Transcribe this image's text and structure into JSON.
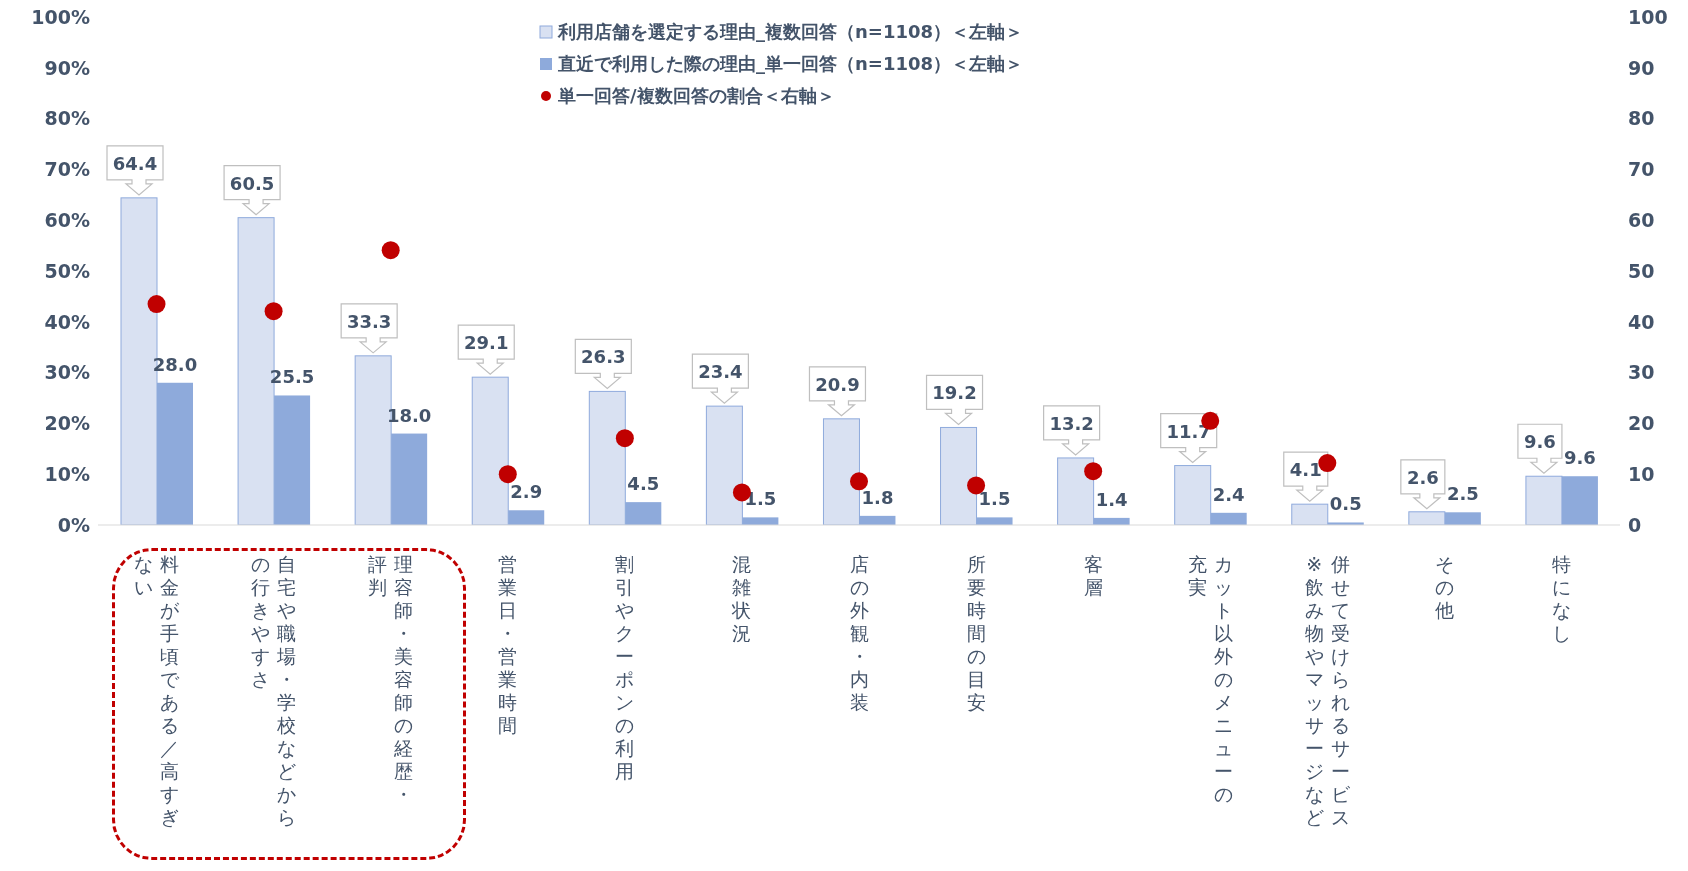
{
  "chart_data": {
    "type": "bar",
    "categories": [
      "料金が手頃である／高すぎない",
      "自宅や職場・学校などからの行きやすさ",
      "理容師・美容師の経歴・評判",
      "営業日・営業時間",
      "割引やクーポンの利用",
      "混雑状況",
      "店の外観・内装",
      "所要時間の目安",
      "客層",
      "カット以外のメニューの充実",
      "併せて受けられるサービス※飲み物やマッサージなど",
      "その他",
      "特になし"
    ],
    "series": [
      {
        "name": "利用店舗を選定する理由_複数回答（n=1108）＜左軸＞",
        "color": "#d9e1f2",
        "values": [
          64.4,
          60.5,
          33.3,
          29.1,
          26.3,
          23.4,
          20.9,
          19.2,
          13.2,
          11.7,
          4.1,
          2.6,
          9.6
        ],
        "value_labels": [
          "64.4",
          "60.5",
          "33.3",
          "29.1",
          "26.3",
          "23.4",
          "20.9",
          "19.2",
          "13.2",
          "11.7",
          "4.1",
          "2.6",
          "9.6"
        ]
      },
      {
        "name": "直近で利用した際の理由_単一回答（n=1108）＜左軸＞",
        "color": "#8eaadb",
        "values": [
          28.0,
          25.5,
          18.0,
          2.9,
          4.5,
          1.5,
          1.8,
          1.5,
          1.4,
          2.4,
          0.5,
          2.5,
          9.6
        ],
        "value_labels": [
          "28.0",
          "25.5",
          "18.0",
          "2.9",
          "4.5",
          "1.5",
          "1.8",
          "1.5",
          "1.4",
          "2.4",
          "0.5",
          "2.5",
          "9.6"
        ]
      },
      {
        "name": "単一回答/複数回答の割合＜右軸＞",
        "type": "scatter",
        "axis": "y2",
        "color": "#c00000",
        "values": [
          43.5,
          42.1,
          54.1,
          10.0,
          17.1,
          6.4,
          8.6,
          7.8,
          10.6,
          20.5,
          12.2,
          null,
          null
        ]
      }
    ],
    "ylim": [
      0,
      100
    ],
    "yticks": [
      {
        "value": 0,
        "label": "0%"
      },
      {
        "value": 10,
        "label": "10%"
      },
      {
        "value": 20,
        "label": "20%"
      },
      {
        "value": 30,
        "label": "30%"
      },
      {
        "value": 40,
        "label": "40%"
      },
      {
        "value": 50,
        "label": "50%"
      },
      {
        "value": 60,
        "label": "60%"
      },
      {
        "value": 70,
        "label": "70%"
      },
      {
        "value": 80,
        "label": "80%"
      },
      {
        "value": 90,
        "label": "90%"
      },
      {
        "value": 100,
        "label": "100%"
      }
    ],
    "y2lim": [
      0,
      100
    ],
    "y2ticks": [
      0,
      10,
      20,
      30,
      40,
      50,
      60,
      70,
      80,
      90,
      100
    ],
    "legend": "top",
    "marker": "circle"
  }
}
